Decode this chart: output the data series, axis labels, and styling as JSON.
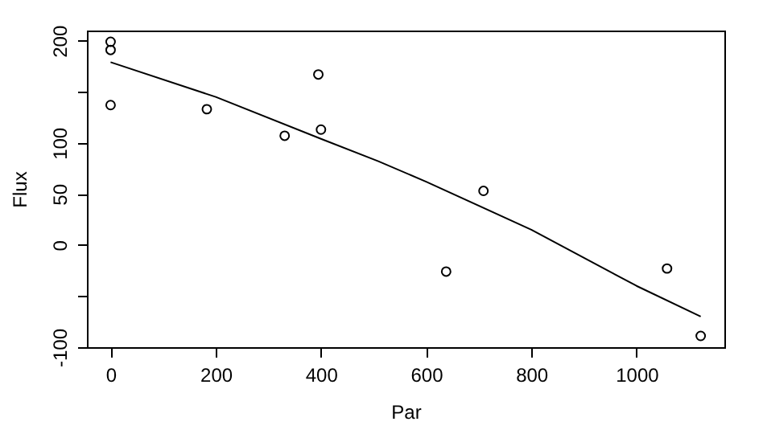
{
  "chart_data": {
    "type": "scatter",
    "xlabel": "Par",
    "ylabel": "Flux",
    "xlim": [
      -45,
      1167
    ],
    "ylim": [
      -100,
      210
    ],
    "xticks": [
      0,
      200,
      400,
      600,
      800,
      1000
    ],
    "yticks": [
      -100,
      {
        "value": -50,
        "label": null
      },
      0,
      50,
      100,
      {
        "value": 150,
        "label": null
      },
      200
    ],
    "grid": false,
    "series": [
      {
        "color": "#000000",
        "marker": "circle",
        "x": [
          0,
          0,
          0,
          183,
          331,
          395,
          400,
          638,
          709,
          1058,
          1122
        ],
        "values": [
          199,
          191,
          137,
          133,
          107,
          167,
          113,
          -26,
          53,
          -23,
          -89
        ]
      },
      {
        "type": "line",
        "color": "#000000",
        "x": [
          0,
          200,
          400,
          509,
          600,
          800,
          1000,
          1122
        ],
        "values": [
          179,
          145,
          104,
          82,
          62,
          15,
          -40,
          -70
        ]
      }
    ]
  }
}
